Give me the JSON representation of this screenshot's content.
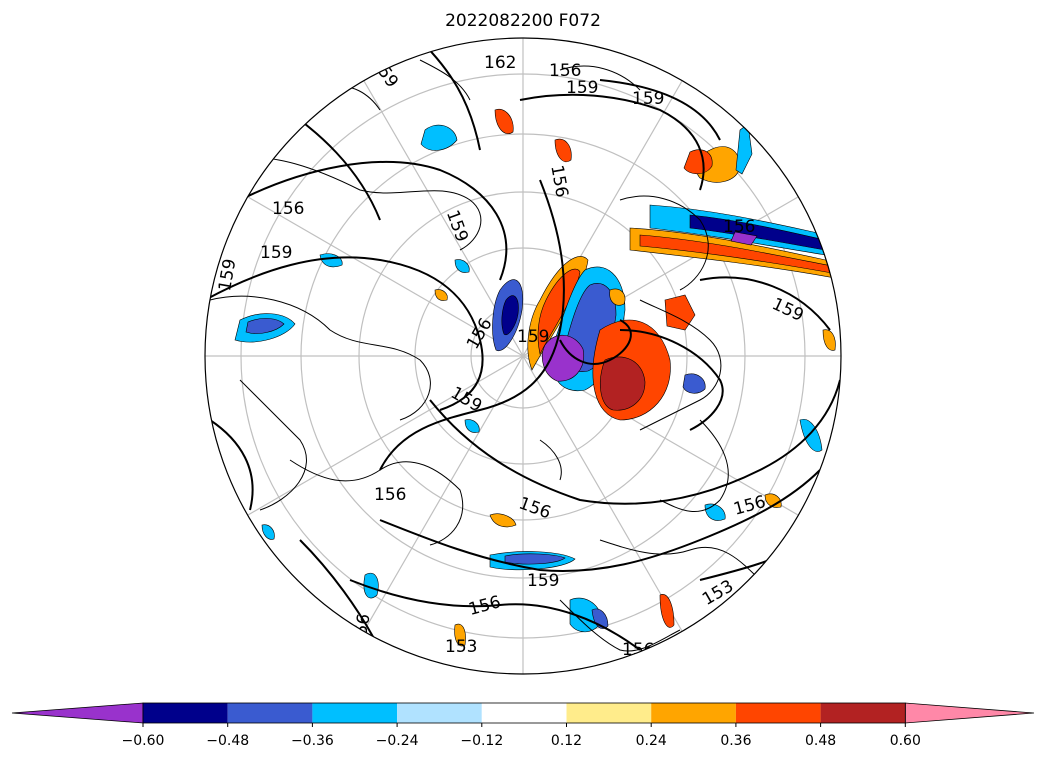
{
  "title": "2022082200 F072",
  "colorbar": {
    "ticks": [
      "−0.60",
      "−0.48",
      "−0.36",
      "−0.24",
      "−0.12",
      "0.12",
      "0.24",
      "0.36",
      "0.48",
      "0.60"
    ],
    "colors": [
      "#9932cc",
      "#00008b",
      "#3a5bd0",
      "#00bfff",
      "#b0e2ff",
      "#ffffff",
      "#ffec8b",
      "#ffa500",
      "#ff4500",
      "#b22222",
      "#ff88a8"
    ]
  },
  "contour_labels": [
    "159",
    "156",
    "153",
    "162",
    "159",
    "159",
    "156",
    "159",
    "156",
    "159",
    "159",
    "156",
    "159",
    "156",
    "159",
    "159",
    "156",
    "156",
    "159",
    "156",
    "156",
    "153",
    "156",
    "153",
    "156",
    "156",
    "159",
    "153"
  ],
  "chart_data": {
    "type": "heatmap",
    "title": "2022082200 F072",
    "projection": "north polar stereographic",
    "contour_levels": [
      153,
      156,
      159,
      162
    ],
    "shading_levels": [
      -0.6,
      -0.48,
      -0.36,
      -0.24,
      -0.12,
      0.12,
      0.24,
      0.36,
      0.48,
      0.6
    ],
    "colorbar_extend": "both"
  }
}
